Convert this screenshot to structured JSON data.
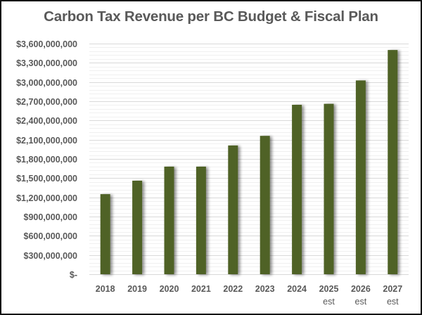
{
  "chart_data": {
    "type": "bar",
    "title": "Carbon Tax Revenue per BC Budget & Fiscal Plan",
    "xlabel": "",
    "ylabel": "",
    "categories": [
      "2018",
      "2019",
      "2020",
      "2021",
      "2022",
      "2023",
      "2024",
      "2025 est",
      "2026 est",
      "2027 est"
    ],
    "category_lines": [
      [
        "2018"
      ],
      [
        "2019"
      ],
      [
        "2020"
      ],
      [
        "2021"
      ],
      [
        "2022"
      ],
      [
        "2023"
      ],
      [
        "2024"
      ],
      [
        "2025",
        "est"
      ],
      [
        "2026",
        "est"
      ],
      [
        "2027",
        "est"
      ]
    ],
    "values": [
      1250000000,
      1460000000,
      1680000000,
      1680000000,
      2010000000,
      2160000000,
      2645000000,
      2660000000,
      3025000000,
      3500000000
    ],
    "ylim": [
      0,
      3600000000
    ],
    "yticks": [
      0,
      300000000,
      600000000,
      900000000,
      1200000000,
      1500000000,
      1800000000,
      2100000000,
      2400000000,
      2700000000,
      3000000000,
      3300000000,
      3600000000
    ],
    "ytick_labels": [
      "$-",
      "$300,000,000",
      "$600,000,000",
      "$900,000,000",
      "$1,200,000,000",
      "$1,500,000,000",
      "$1,800,000,000",
      "$2,100,000,000",
      "$2,400,000,000",
      "$2,700,000,000",
      "$3,000,000,000",
      "$3,300,000,000",
      "$3,600,000,000"
    ],
    "minor_grid_step": 60000000,
    "grid": true,
    "legend": "none",
    "colors": {
      "bar": "#4F6228",
      "major_grid": "#D9D9D9",
      "minor_grid": "#F0F0F0",
      "text": "#595959",
      "border": "#111111"
    }
  }
}
